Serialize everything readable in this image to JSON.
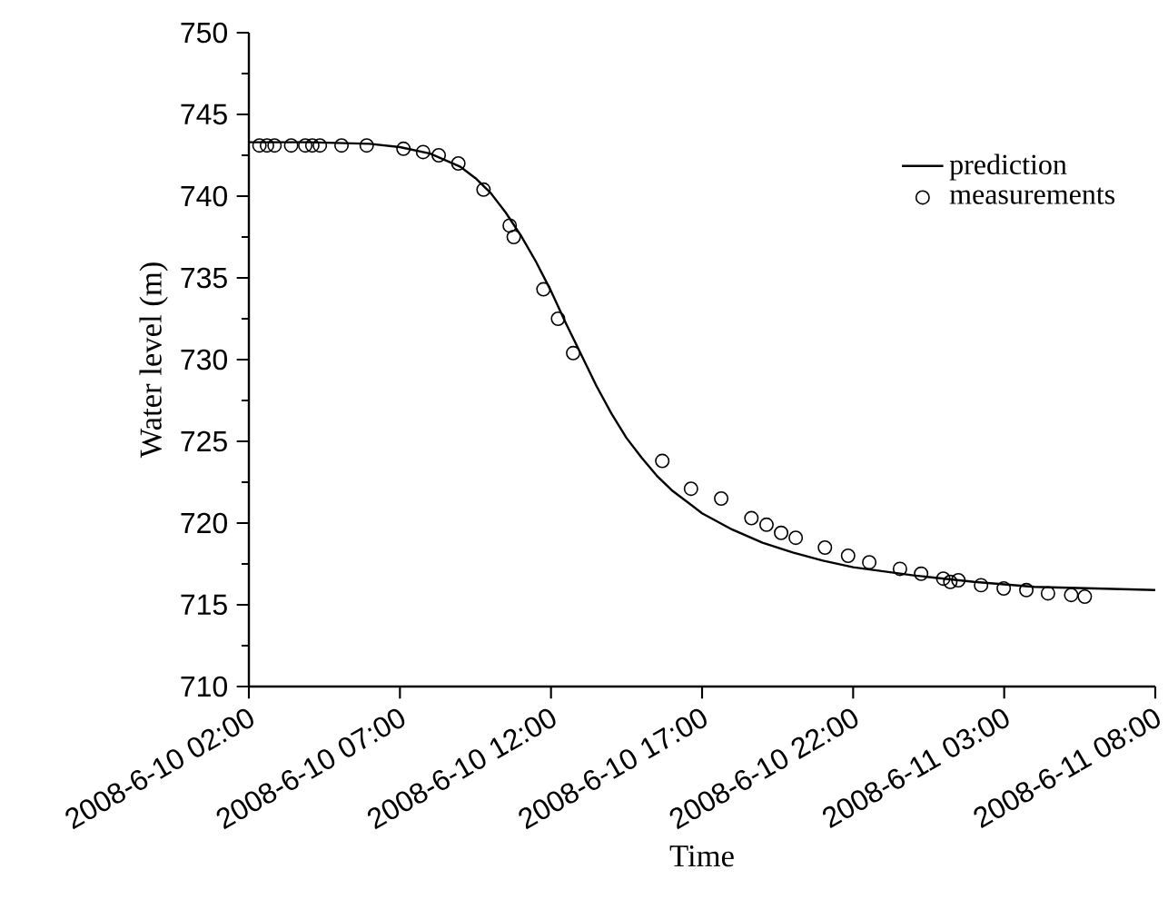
{
  "chart_data": {
    "type": "scatter",
    "xlabel": "Time",
    "ylabel": "Water level (m)",
    "xlim": [
      "2008-06-10T02:00",
      "2008-06-11T08:00"
    ],
    "ylim": [
      710,
      750
    ],
    "xticks": [
      {
        "value": "2008-06-10T02:00",
        "label": "2008-6-10 02:00"
      },
      {
        "value": "2008-06-10T07:00",
        "label": "2008-6-10 07:00"
      },
      {
        "value": "2008-06-10T12:00",
        "label": "2008-6-10 12:00"
      },
      {
        "value": "2008-06-10T17:00",
        "label": "2008-6-10 17:00"
      },
      {
        "value": "2008-06-10T22:00",
        "label": "2008-6-10 22:00"
      },
      {
        "value": "2008-06-11T03:00",
        "label": "2008-6-11 03:00"
      },
      {
        "value": "2008-06-11T08:00",
        "label": "2008-6-11 08:00"
      }
    ],
    "yticks": [
      710,
      715,
      720,
      725,
      730,
      735,
      740,
      745,
      750
    ],
    "grid": false,
    "legend": "top right",
    "series": [
      {
        "name": "prediction",
        "type": "line",
        "color": "#000000",
        "marker": "none",
        "x": [
          "2008-06-10T02:00",
          "2008-06-10T04:00",
          "2008-06-10T06:00",
          "2008-06-10T07:00",
          "2008-06-10T08:00",
          "2008-06-10T09:00",
          "2008-06-10T09:30",
          "2008-06-10T10:00",
          "2008-06-10T10:30",
          "2008-06-10T11:00",
          "2008-06-10T11:30",
          "2008-06-10T12:00",
          "2008-06-10T12:30",
          "2008-06-10T13:00",
          "2008-06-10T13:30",
          "2008-06-10T14:00",
          "2008-06-10T14:30",
          "2008-06-10T15:00",
          "2008-06-10T15:30",
          "2008-06-10T16:00",
          "2008-06-10T17:00",
          "2008-06-10T18:00",
          "2008-06-10T19:00",
          "2008-06-10T20:00",
          "2008-06-10T21:00",
          "2008-06-10T22:00",
          "2008-06-11T00:00",
          "2008-06-11T02:00",
          "2008-06-11T04:00",
          "2008-06-11T06:00",
          "2008-06-11T08:00"
        ],
        "values": [
          743.3,
          743.3,
          743.2,
          743.0,
          742.6,
          741.8,
          741.1,
          740.2,
          739.0,
          737.6,
          736.0,
          734.2,
          732.2,
          730.3,
          728.4,
          726.7,
          725.2,
          724.0,
          722.9,
          722.0,
          720.6,
          719.6,
          718.8,
          718.2,
          717.7,
          717.3,
          716.8,
          716.4,
          716.1,
          716.0,
          715.9
        ]
      },
      {
        "name": "measurements",
        "color": "#000000",
        "marker": "circle",
        "x": [
          "2008-06-10T02:21",
          "2008-06-10T02:36",
          "2008-06-10T02:51",
          "2008-06-10T03:24",
          "2008-06-10T03:52",
          "2008-06-10T04:06",
          "2008-06-10T04:21",
          "2008-06-10T05:04",
          "2008-06-10T05:54",
          "2008-06-10T07:07",
          "2008-06-10T07:46",
          "2008-06-10T08:17",
          "2008-06-10T08:56",
          "2008-06-10T09:46",
          "2008-06-10T10:38",
          "2008-06-10T10:46",
          "2008-06-10T11:45",
          "2008-06-10T12:14",
          "2008-06-10T12:44",
          "2008-06-10T15:41",
          "2008-06-10T16:38",
          "2008-06-10T17:38",
          "2008-06-10T18:38",
          "2008-06-10T19:08",
          "2008-06-10T19:37",
          "2008-06-10T20:06",
          "2008-06-10T21:04",
          "2008-06-10T21:50",
          "2008-06-10T22:32",
          "2008-06-10T23:33",
          "2008-06-11T00:15",
          "2008-06-11T00:59",
          "2008-06-11T01:13",
          "2008-06-11T01:29",
          "2008-06-11T02:14",
          "2008-06-11T02:59",
          "2008-06-11T03:44",
          "2008-06-11T04:27",
          "2008-06-11T05:13",
          "2008-06-11T05:40"
        ],
        "values": [
          743.1,
          743.1,
          743.1,
          743.1,
          743.1,
          743.1,
          743.1,
          743.1,
          743.1,
          742.9,
          742.7,
          742.5,
          742.0,
          740.4,
          738.2,
          737.5,
          734.3,
          732.5,
          730.4,
          723.8,
          722.1,
          721.5,
          720.3,
          719.9,
          719.4,
          719.1,
          718.5,
          718.0,
          717.6,
          717.2,
          716.9,
          716.6,
          716.4,
          716.5,
          716.2,
          716.0,
          715.9,
          715.7,
          715.6,
          715.5
        ]
      }
    ]
  }
}
